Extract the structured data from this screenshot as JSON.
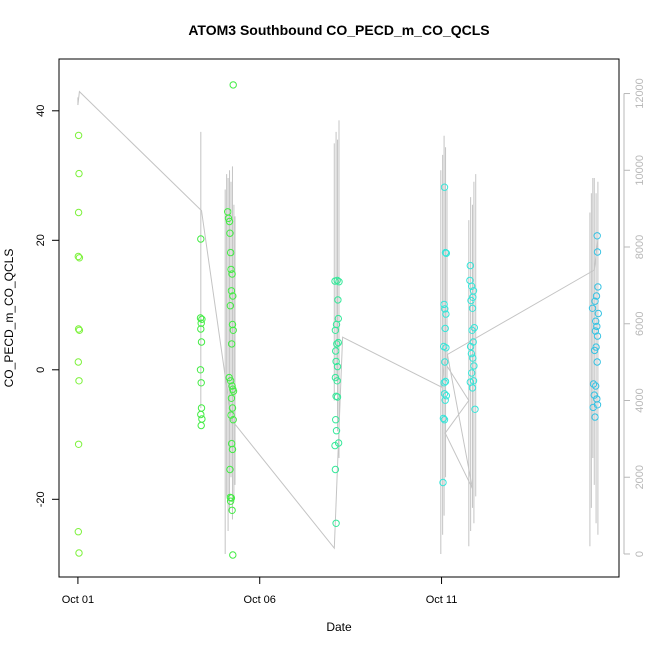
{
  "chart_data": {
    "type": "scatter",
    "title": "ATOM3 Southbound CO_PECD_m_CO_QCLS",
    "xlabel": "Date",
    "ylabel": "CO_PECD_m_CO_QCLS",
    "x_ticks": [
      "Oct 01",
      "Oct 06",
      "Oct 11"
    ],
    "x_tick_days": [
      1,
      6,
      11
    ],
    "xlim": [
      0.48,
      15.88
    ],
    "ylim": [
      -32,
      48
    ],
    "y_ticks": [
      -20,
      0,
      20,
      40
    ],
    "y2lim": [
      -600,
      12900
    ],
    "y2_ticks": [
      0,
      2000,
      4000,
      6000,
      8000,
      10000,
      12000
    ],
    "grid": false,
    "legend": "none",
    "point_colors": {
      "group1": "#7df23c",
      "group2": "#43ec44",
      "group3": "#36e89a",
      "group4": "#37e5d9",
      "group5": "#37c3e3",
      "group6": "#3aa0e2"
    },
    "line_color": "#c4c4c4",
    "series": [
      {
        "group": "group1",
        "points": [
          [
            1.02,
            36.2
          ],
          [
            1.03,
            30.3
          ],
          [
            1.02,
            24.3
          ],
          [
            1.01,
            17.5
          ],
          [
            1.04,
            17.3
          ],
          [
            1.02,
            6.3
          ],
          [
            1.04,
            6.1
          ],
          [
            1.01,
            1.2
          ],
          [
            1.03,
            -1.7
          ],
          [
            1.02,
            -11.5
          ],
          [
            1.01,
            -25.0
          ],
          [
            1.03,
            -28.3
          ]
        ]
      },
      {
        "group": "group2",
        "points": [
          [
            4.38,
            20.2
          ],
          [
            4.37,
            8.0
          ],
          [
            4.41,
            7.8
          ],
          [
            4.39,
            7.2
          ],
          [
            4.38,
            6.3
          ],
          [
            4.4,
            4.3
          ],
          [
            4.37,
            0.0
          ],
          [
            4.39,
            -2.0
          ],
          [
            4.4,
            -5.9
          ],
          [
            4.38,
            -6.9
          ],
          [
            4.41,
            -7.6
          ],
          [
            4.39,
            -8.6
          ],
          [
            5.12,
            24.4
          ],
          [
            5.14,
            23.4
          ],
          [
            5.17,
            22.9
          ],
          [
            5.18,
            21.1
          ],
          [
            5.2,
            18.1
          ],
          [
            5.21,
            15.5
          ],
          [
            5.24,
            14.8
          ],
          [
            5.22,
            12.2
          ],
          [
            5.26,
            11.4
          ],
          [
            5.19,
            9.9
          ],
          [
            5.25,
            7.0
          ],
          [
            5.27,
            6.1
          ],
          [
            5.23,
            4.0
          ],
          [
            5.16,
            -1.2
          ],
          [
            5.2,
            -1.7
          ],
          [
            5.24,
            -2.5
          ],
          [
            5.26,
            -3.0
          ],
          [
            5.28,
            -3.3
          ],
          [
            5.22,
            -4.4
          ],
          [
            5.25,
            -5.9
          ],
          [
            5.21,
            -7.0
          ],
          [
            5.27,
            -7.7
          ],
          [
            5.23,
            -11.4
          ],
          [
            5.25,
            -12.3
          ],
          [
            5.18,
            -15.4
          ],
          [
            5.19,
            -19.7
          ],
          [
            5.22,
            -19.8
          ],
          [
            5.2,
            -20.3
          ],
          [
            5.24,
            -21.7
          ],
          [
            5.26,
            -28.6
          ],
          [
            5.27,
            44.0
          ]
        ]
      },
      {
        "group": "group3",
        "points": [
          [
            8.07,
            13.7
          ],
          [
            8.13,
            13.8
          ],
          [
            8.18,
            13.6
          ],
          [
            8.15,
            10.8
          ],
          [
            8.16,
            7.9
          ],
          [
            8.11,
            7.0
          ],
          [
            8.08,
            6.1
          ],
          [
            8.12,
            4.0
          ],
          [
            8.16,
            4.2
          ],
          [
            8.09,
            2.9
          ],
          [
            8.1,
            1.3
          ],
          [
            8.14,
            0.5
          ],
          [
            8.08,
            -1.2
          ],
          [
            8.13,
            -1.7
          ],
          [
            8.1,
            -4.1
          ],
          [
            8.14,
            -4.2
          ],
          [
            8.09,
            -7.7
          ],
          [
            8.11,
            -9.4
          ],
          [
            8.07,
            -11.7
          ],
          [
            8.17,
            -11.3
          ],
          [
            8.08,
            -15.4
          ],
          [
            8.1,
            -23.7
          ]
        ]
      },
      {
        "group": "group4",
        "points": [
          [
            11.08,
            28.2
          ],
          [
            11.11,
            18.1
          ],
          [
            11.13,
            18.0
          ],
          [
            11.07,
            10.1
          ],
          [
            11.09,
            9.4
          ],
          [
            11.12,
            8.6
          ],
          [
            11.1,
            6.4
          ],
          [
            11.06,
            3.6
          ],
          [
            11.12,
            3.4
          ],
          [
            11.09,
            1.2
          ],
          [
            11.07,
            -2.0
          ],
          [
            11.11,
            -1.8
          ],
          [
            11.08,
            -3.7
          ],
          [
            11.1,
            -4.7
          ],
          [
            11.13,
            -4.0
          ],
          [
            11.05,
            -7.5
          ],
          [
            11.08,
            -7.7
          ],
          [
            11.04,
            -17.4
          ],
          [
            11.78,
            13.8
          ],
          [
            11.83,
            12.9
          ],
          [
            11.88,
            12.2
          ],
          [
            11.86,
            11.2
          ],
          [
            11.79,
            16.1
          ],
          [
            11.81,
            10.7
          ],
          [
            11.85,
            9.5
          ],
          [
            11.9,
            6.5
          ],
          [
            11.84,
            6.1
          ],
          [
            11.87,
            4.3
          ],
          [
            11.8,
            3.6
          ],
          [
            11.82,
            2.5
          ],
          [
            11.86,
            1.8
          ],
          [
            11.89,
            0.6
          ],
          [
            11.83,
            -0.5
          ],
          [
            11.79,
            -1.9
          ],
          [
            11.85,
            -2.8
          ],
          [
            11.88,
            -1.7
          ],
          [
            11.92,
            -6.1
          ]
        ]
      },
      {
        "group": "group5",
        "points": [
          [
            15.28,
            20.7
          ],
          [
            15.29,
            18.2
          ],
          [
            15.3,
            12.8
          ],
          [
            15.26,
            11.4
          ],
          [
            15.22,
            10.6
          ],
          [
            15.15,
            9.5
          ],
          [
            15.31,
            8.7
          ],
          [
            15.24,
            7.5
          ],
          [
            15.27,
            6.7
          ],
          [
            15.23,
            6.0
          ],
          [
            15.29,
            5.2
          ],
          [
            15.25,
            3.5
          ],
          [
            15.21,
            3.0
          ],
          [
            15.28,
            1.2
          ],
          [
            15.18,
            -2.2
          ],
          [
            15.24,
            -2.5
          ],
          [
            15.2,
            -3.9
          ],
          [
            15.27,
            -4.5
          ],
          [
            15.29,
            -5.4
          ],
          [
            15.17,
            -5.8
          ],
          [
            15.22,
            -7.3
          ]
        ]
      }
    ],
    "secondary_line": [
      [
        1.0,
        11700
      ],
      [
        1.04,
        12050
      ],
      [
        4.4,
        8950
      ],
      [
        5.22,
        3500
      ],
      [
        8.05,
        150
      ],
      [
        8.28,
        5650
      ],
      [
        11.0,
        4350
      ],
      [
        11.08,
        5000
      ],
      [
        11.75,
        4000
      ],
      [
        11.1,
        3150
      ],
      [
        11.85,
        1700
      ],
      [
        11.16,
        5200
      ],
      [
        15.2,
        7400
      ],
      [
        15.3,
        8200
      ]
    ],
    "secondary_spikes": [
      {
        "x": 1.0,
        "low": 11700,
        "high": 11900
      },
      {
        "x": 4.38,
        "low": 3800,
        "high": 11000
      },
      {
        "x": 5.05,
        "low": 0,
        "high": 9500
      },
      {
        "x": 5.09,
        "low": 1500,
        "high": 9900
      },
      {
        "x": 5.13,
        "low": 600,
        "high": 9800
      },
      {
        "x": 5.17,
        "low": 1100,
        "high": 10000
      },
      {
        "x": 5.21,
        "low": 2000,
        "high": 9700
      },
      {
        "x": 5.25,
        "low": 900,
        "high": 10100
      },
      {
        "x": 5.29,
        "low": 1400,
        "high": 9100
      },
      {
        "x": 5.32,
        "low": 1800,
        "high": 8800
      },
      {
        "x": 8.05,
        "low": 4000,
        "high": 10700
      },
      {
        "x": 8.1,
        "low": 4500,
        "high": 11000
      },
      {
        "x": 8.14,
        "low": 3200,
        "high": 10800
      },
      {
        "x": 8.18,
        "low": 2500,
        "high": 11300
      },
      {
        "x": 10.98,
        "low": 0,
        "high": 10000
      },
      {
        "x": 11.03,
        "low": 500,
        "high": 10400
      },
      {
        "x": 11.07,
        "low": 1000,
        "high": 10900
      },
      {
        "x": 11.11,
        "low": 2000,
        "high": 10600
      },
      {
        "x": 11.15,
        "low": 4500,
        "high": 9500
      },
      {
        "x": 11.75,
        "low": 200,
        "high": 8700
      },
      {
        "x": 11.8,
        "low": 600,
        "high": 9300
      },
      {
        "x": 11.85,
        "low": 1200,
        "high": 9100
      },
      {
        "x": 11.89,
        "low": 800,
        "high": 9700
      },
      {
        "x": 11.94,
        "low": 1500,
        "high": 9900
      },
      {
        "x": 15.08,
        "low": 200,
        "high": 8900
      },
      {
        "x": 15.12,
        "low": 1200,
        "high": 9400
      },
      {
        "x": 15.16,
        "low": 2500,
        "high": 9800
      },
      {
        "x": 15.2,
        "low": 1800,
        "high": 9800
      },
      {
        "x": 15.25,
        "low": 800,
        "high": 9400
      },
      {
        "x": 15.3,
        "low": 500,
        "high": 9700
      }
    ]
  }
}
